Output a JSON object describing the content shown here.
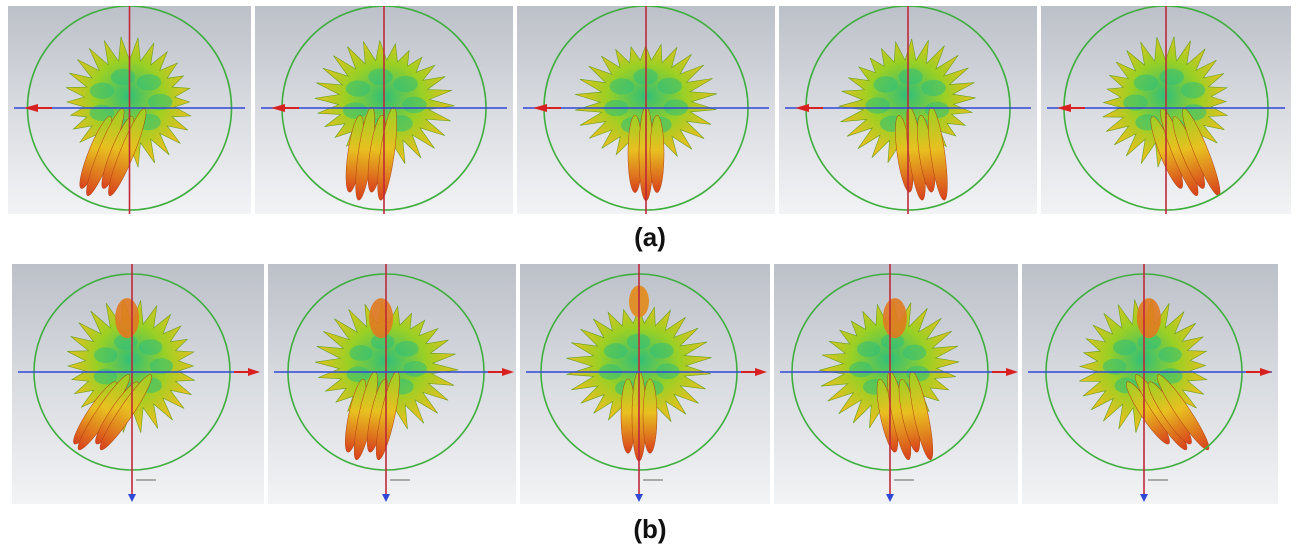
{
  "captions": {
    "a": "(a)",
    "b": "(b)"
  },
  "row_a": {
    "panels": [
      {
        "tilt": 22,
        "hot": "left"
      },
      {
        "tilt": 8,
        "hot": "left"
      },
      {
        "tilt": 0,
        "hot": "center"
      },
      {
        "tilt": -8,
        "hot": "right"
      },
      {
        "tilt": -22,
        "hot": "right"
      }
    ]
  },
  "row_b": {
    "panels": [
      {
        "tilt": 34,
        "hot": "left"
      },
      {
        "tilt": 12,
        "hot": "left"
      },
      {
        "tilt": 0,
        "hot": "center"
      },
      {
        "tilt": -12,
        "hot": "right"
      },
      {
        "tilt": -34,
        "hot": "right"
      }
    ]
  },
  "colors": {
    "ring": "#3fae3f",
    "vertical_axis": "#c0283a",
    "horizontal_axis": "#3048d8",
    "lobe_hot": "#d8401c",
    "lobe_warm": "#e8c020",
    "lobe_mid": "#9ad024",
    "lobe_cool": "#2fbf7a",
    "arrow": "#d82020"
  }
}
